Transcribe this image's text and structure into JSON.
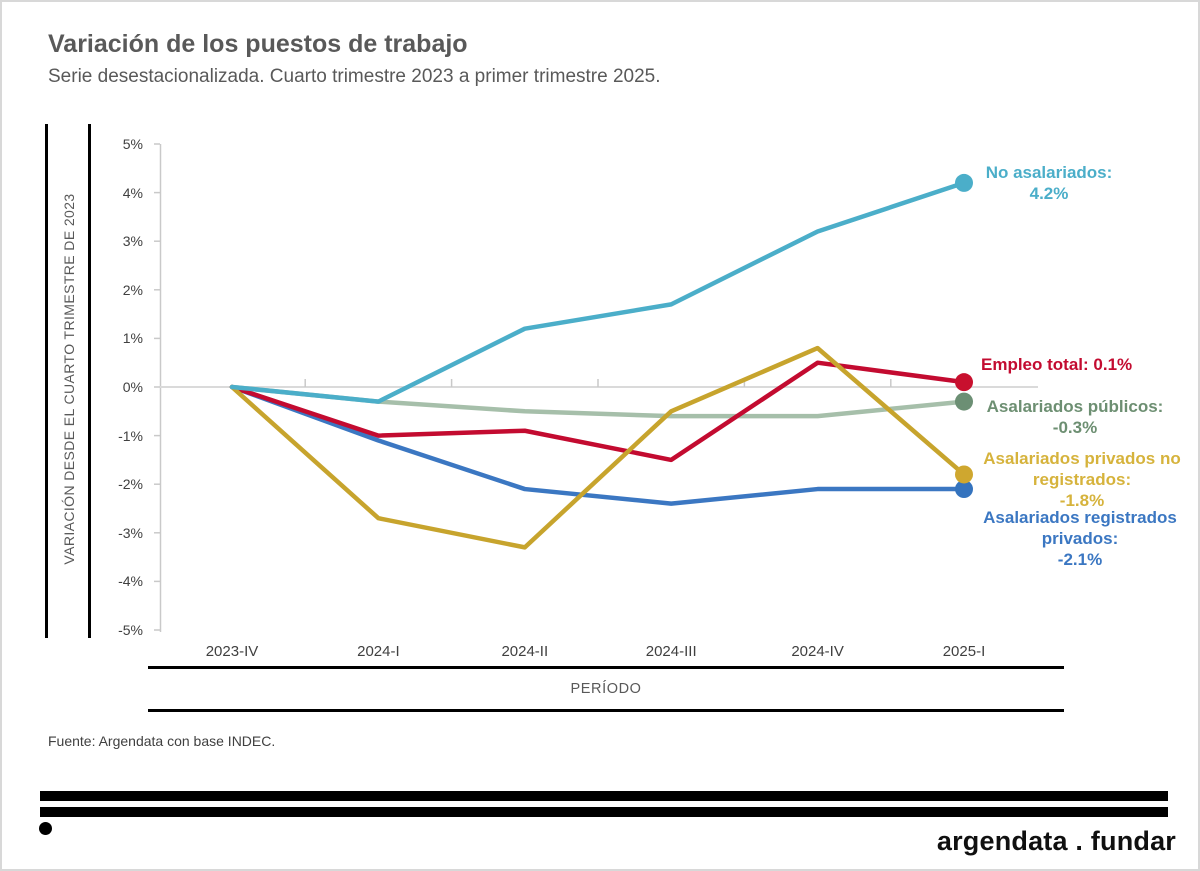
{
  "header": {
    "title": "Variación de los puestos de trabajo",
    "subtitle": "Serie desestacionalizada. Cuarto trimestre 2023 a primer trimestre 2025."
  },
  "chart_data": {
    "type": "line",
    "title": "Variación de los puestos de trabajo",
    "subtitle": "Serie desestacionalizada. Cuarto trimestre 2023 a primer trimestre 2025.",
    "categories": [
      "2023-IV",
      "2024-I",
      "2024-II",
      "2024-III",
      "2024-IV",
      "2025-I"
    ],
    "xlabel": "PERÍODO",
    "ylabel": "VARIACIÓN DESDE EL CUARTO TRIMESTRE DE 2023",
    "ylim": [
      -5,
      5
    ],
    "y_ticks": [
      "5%",
      "4%",
      "3%",
      "2%",
      "1%",
      "0%",
      "-1%",
      "-2%",
      "-3%",
      "-4%",
      "-5%"
    ],
    "grid": "only 0% horizontal gridline",
    "legend": "direct labels at right end of each line",
    "series": [
      {
        "id": "no_asalariados",
        "name": "No asalariados",
        "color": "#4BAEC9",
        "dot_color": "#4BAEC9",
        "values": [
          0,
          -0.3,
          1.2,
          1.7,
          3.2,
          4.2
        ],
        "end_label": "No asalariados:\n4.2%"
      },
      {
        "id": "empleo_total",
        "name": "Empleo total",
        "color": "#C30B30",
        "dot_color": "#C8102E",
        "values": [
          0,
          -1.0,
          -0.9,
          -1.5,
          0.5,
          0.1
        ],
        "end_label": "Empleo total: 0.1%"
      },
      {
        "id": "asalariados_publicos",
        "name": "Asalariados públicos",
        "color": "#6D8F72",
        "line_color": "#A6BFAA",
        "dot_color": "#6C8F74",
        "values": [
          0,
          -0.3,
          -0.5,
          -0.6,
          -0.6,
          -0.3
        ],
        "end_label": "Asalariados públicos:\n-0.3%"
      },
      {
        "id": "asalariados_privados_no_registrados",
        "name": "Asalariados privados no registrados",
        "color": "#D6B33C",
        "line_color": "#C7A42D",
        "dot_color": "#CFA72F",
        "values": [
          0,
          -2.7,
          -3.3,
          -0.5,
          0.8,
          -1.8
        ],
        "end_label": "Asalariados privados no\nregistrados:\n-1.8%"
      },
      {
        "id": "asalariados_registrados_privados",
        "name": "Asalariados registrados privados",
        "color": "#3B77C2",
        "dot_color": "#3473BE",
        "values": [
          0,
          -1.1,
          -2.1,
          -2.4,
          -2.1,
          -2.1
        ],
        "end_label": "Asalariados registrados\nprivados:\n-2.1%"
      }
    ]
  },
  "footer": {
    "source": "Fuente: Argendata con base INDEC.",
    "brand": "argendata . fundar"
  }
}
